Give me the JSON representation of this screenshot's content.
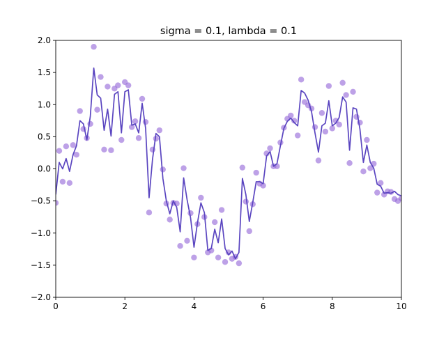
{
  "chart_data": {
    "type": "scatter",
    "title": "sigma = 0.1, lambda = 0.1",
    "xlabel": "",
    "ylabel": "",
    "xlim": [
      0,
      10
    ],
    "ylim": [
      -2.0,
      2.0
    ],
    "xticks": [
      "0",
      "2",
      "4",
      "6",
      "8",
      "10"
    ],
    "yticks": [
      "−2.0",
      "−1.5",
      "−1.0",
      "−0.5",
      "0.0",
      "0.5",
      "1.0",
      "1.5",
      "2.0"
    ],
    "xtick_values": [
      0,
      2,
      4,
      6,
      8,
      10
    ],
    "ytick_values": [
      -2.0,
      -1.5,
      -1.0,
      -0.5,
      0.0,
      0.5,
      1.0,
      1.5,
      2.0
    ],
    "grid": false,
    "colors": {
      "points": "#9467d8",
      "line": "#5a45c0"
    },
    "series": [
      {
        "kind": "scatter",
        "x": [
          0.0,
          0.1,
          0.2,
          0.3,
          0.4,
          0.5,
          0.6,
          0.7,
          0.8,
          0.9,
          1.0,
          1.1,
          1.2,
          1.3,
          1.4,
          1.5,
          1.6,
          1.7,
          1.8,
          1.9,
          2.0,
          2.1,
          2.2,
          2.3,
          2.4,
          2.5,
          2.6,
          2.7,
          2.8,
          2.9,
          3.0,
          3.1,
          3.2,
          3.3,
          3.4,
          3.5,
          3.6,
          3.7,
          3.8,
          3.9,
          4.0,
          4.1,
          4.2,
          4.3,
          4.4,
          4.5,
          4.6,
          4.7,
          4.8,
          4.9,
          5.0,
          5.1,
          5.2,
          5.3,
          5.4,
          5.5,
          5.6,
          5.7,
          5.8,
          5.9,
          6.0,
          6.1,
          6.2,
          6.3,
          6.4,
          6.5,
          6.6,
          6.7,
          6.8,
          6.9,
          7.0,
          7.1,
          7.2,
          7.3,
          7.4,
          7.5,
          7.6,
          7.7,
          7.8,
          7.9,
          8.0,
          8.1,
          8.2,
          8.3,
          8.4,
          8.5,
          8.6,
          8.7,
          8.8,
          8.9,
          9.0,
          9.1,
          9.2,
          9.3,
          9.4,
          9.5,
          9.6,
          9.7,
          9.8,
          9.9,
          10.0
        ],
        "y": [
          -0.53,
          0.28,
          -0.2,
          0.35,
          -0.22,
          0.37,
          0.22,
          0.9,
          0.62,
          0.48,
          0.7,
          1.9,
          0.92,
          1.43,
          0.3,
          1.28,
          0.29,
          1.25,
          1.3,
          0.45,
          1.35,
          1.3,
          0.65,
          0.74,
          0.48,
          1.09,
          0.73,
          -0.68,
          0.3,
          0.47,
          0.6,
          -0.01,
          -0.54,
          -0.79,
          -0.53,
          -0.54,
          -1.2,
          0.01,
          -1.12,
          -0.69,
          -1.38,
          -0.86,
          -0.45,
          -0.75,
          -1.3,
          -1.27,
          -0.83,
          -1.38,
          -0.64,
          -1.45,
          -1.3,
          -1.4,
          -1.37,
          -1.47,
          0.02,
          -0.51,
          -0.97,
          -0.55,
          -0.06,
          -0.23,
          -0.26,
          0.24,
          0.32,
          0.04,
          0.04,
          0.41,
          0.64,
          0.78,
          0.83,
          0.75,
          0.52,
          1.39,
          1.04,
          0.99,
          0.94,
          0.65,
          0.13,
          0.87,
          0.58,
          1.29,
          0.63,
          0.75,
          0.69,
          1.34,
          1.15,
          0.09,
          1.2,
          0.81,
          0.72,
          -0.04,
          0.45,
          0.01,
          0.08,
          -0.37,
          -0.22,
          -0.4,
          -0.35,
          -0.36,
          -0.47,
          -0.5,
          -0.46
        ]
      },
      {
        "kind": "line",
        "x": [
          0.0,
          0.1,
          0.2,
          0.3,
          0.4,
          0.5,
          0.6,
          0.7,
          0.8,
          0.9,
          1.0,
          1.1,
          1.2,
          1.3,
          1.4,
          1.5,
          1.6,
          1.7,
          1.8,
          1.9,
          2.0,
          2.1,
          2.2,
          2.3,
          2.4,
          2.5,
          2.6,
          2.7,
          2.8,
          2.9,
          3.0,
          3.1,
          3.2,
          3.3,
          3.4,
          3.5,
          3.6,
          3.7,
          3.8,
          3.9,
          4.0,
          4.1,
          4.2,
          4.3,
          4.4,
          4.5,
          4.6,
          4.7,
          4.8,
          4.9,
          5.0,
          5.1,
          5.2,
          5.3,
          5.4,
          5.5,
          5.6,
          5.7,
          5.8,
          5.9,
          6.0,
          6.1,
          6.2,
          6.3,
          6.4,
          6.5,
          6.6,
          6.7,
          6.8,
          6.9,
          7.0,
          7.1,
          7.2,
          7.3,
          7.4,
          7.5,
          7.6,
          7.7,
          7.8,
          7.9,
          8.0,
          8.1,
          8.2,
          8.3,
          8.4,
          8.5,
          8.6,
          8.7,
          8.8,
          8.9,
          9.0,
          9.1,
          9.2,
          9.3,
          9.4,
          9.5,
          9.6,
          9.7,
          9.8,
          9.9,
          10.0
        ],
        "y": [
          -0.4,
          0.1,
          0.0,
          0.16,
          -0.04,
          0.22,
          0.36,
          0.75,
          0.7,
          0.45,
          0.82,
          1.57,
          1.15,
          1.1,
          0.6,
          0.93,
          0.51,
          1.16,
          1.2,
          0.56,
          1.2,
          1.23,
          0.68,
          0.7,
          0.56,
          1.02,
          0.63,
          -0.45,
          0.15,
          0.55,
          0.5,
          -0.15,
          -0.5,
          -0.7,
          -0.5,
          -0.6,
          -0.98,
          -0.14,
          -0.48,
          -0.76,
          -1.22,
          -0.84,
          -0.53,
          -0.68,
          -1.27,
          -1.24,
          -0.94,
          -1.15,
          -0.78,
          -1.24,
          -1.34,
          -1.28,
          -1.4,
          -1.3,
          -0.15,
          -0.4,
          -0.82,
          -0.52,
          -0.2,
          -0.2,
          -0.23,
          0.2,
          0.27,
          0.04,
          0.08,
          0.36,
          0.63,
          0.74,
          0.79,
          0.72,
          0.67,
          1.22,
          1.18,
          1.07,
          0.89,
          0.56,
          0.26,
          0.67,
          0.71,
          1.06,
          0.67,
          0.71,
          0.8,
          1.12,
          1.04,
          0.29,
          0.95,
          0.93,
          0.62,
          0.1,
          0.37,
          0.1,
          0.01,
          -0.24,
          -0.27,
          -0.38,
          -0.37,
          -0.38,
          -0.35,
          -0.4,
          -0.42
        ]
      }
    ]
  }
}
